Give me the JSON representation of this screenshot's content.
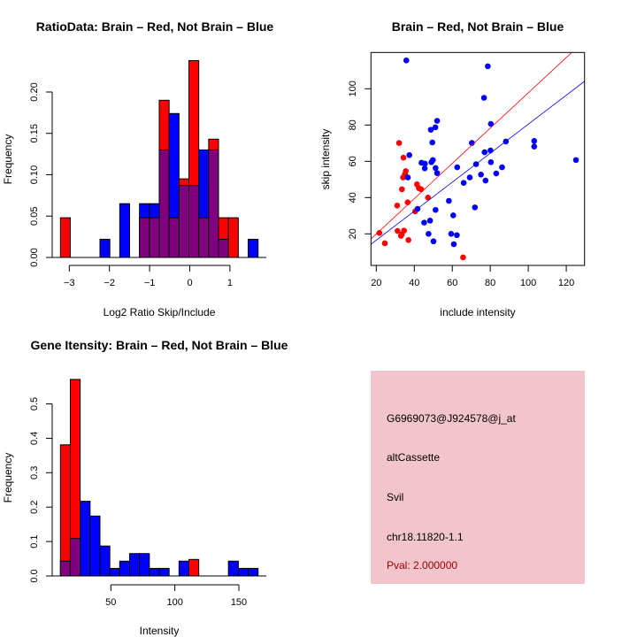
{
  "colors": {
    "red": "#ff0000",
    "blue": "#0000ff",
    "purple": "#800080",
    "panel": "#f2c4cc",
    "pval": "#a00000"
  },
  "chart_data": [
    {
      "type": "bar",
      "title": "RatioData: Brain – Red, Not Brain – Blue",
      "xlabel": "Log2 Ratio Skip/Include",
      "ylabel": "Frequency",
      "bin_start": -3.22,
      "bin_width": 0.246,
      "xticks": [
        -3,
        -2,
        -1,
        0,
        1
      ],
      "yticks": [
        "0.00",
        "0.05",
        "0.10",
        "0.15",
        "0.20"
      ],
      "series": [
        {
          "name": "Brain",
          "color": "red",
          "values": [
            0.048,
            0,
            0,
            0,
            0,
            0,
            0,
            0,
            0.048,
            0.048,
            0.19,
            0.048,
            0.095,
            0.238,
            0.048,
            0.143,
            0.048,
            0.048,
            0,
            0
          ]
        },
        {
          "name": "Not Brain",
          "color": "blue",
          "values": [
            0,
            0,
            0,
            0,
            0.022,
            0,
            0.065,
            0,
            0.065,
            0.065,
            0.13,
            0.174,
            0.087,
            0.087,
            0.13,
            0.13,
            0.022,
            0,
            0,
            0.022
          ]
        }
      ]
    },
    {
      "type": "scatter",
      "title": "Brain – Red, Not Brain – Blue",
      "xlabel": "include intensity",
      "ylabel": "skip intensity",
      "xlim": [
        17.2,
        129.6
      ],
      "ylim": [
        2.6,
        120
      ],
      "xticks": [
        20,
        40,
        60,
        80,
        100,
        120
      ],
      "yticks": [
        20,
        40,
        60,
        80,
        100
      ],
      "lines": [
        {
          "name": "Brain fit",
          "color": "red",
          "intercept": 0.46,
          "slope": 0.973
        },
        {
          "name": "Not Brain fit",
          "color": "blue",
          "intercept": 0.56,
          "slope": 0.799
        }
      ],
      "series": [
        {
          "name": "Brain",
          "color": "red",
          "points": [
            [
              21.6,
              20.5
            ],
            [
              24.5,
              14.8
            ],
            [
              32.0,
              70.1
            ],
            [
              34.3,
              62.0
            ],
            [
              33.5,
              44.6
            ],
            [
              35.5,
              54.6
            ],
            [
              35.1,
              53.0
            ],
            [
              34.1,
              51.1
            ],
            [
              31.0,
              35.6
            ],
            [
              36.5,
              37.4
            ],
            [
              33.4,
              19.7
            ],
            [
              33.0,
              18.9
            ],
            [
              34.6,
              21.8
            ],
            [
              31.2,
              21.6
            ],
            [
              36.9,
              16.6
            ],
            [
              40.5,
              32.4
            ],
            [
              41.4,
              47.3
            ],
            [
              42.4,
              45.2
            ],
            [
              43.6,
              44.6
            ],
            [
              47.2,
              40.0
            ],
            [
              65.7,
              7.0
            ]
          ]
        },
        {
          "name": "Not Brain",
          "color": "blue",
          "points": [
            [
              35.8,
              115.6
            ],
            [
              78.7,
              112.4
            ],
            [
              76.7,
              95.0
            ],
            [
              80.3,
              80.6
            ],
            [
              52.0,
              82.3
            ],
            [
              51.1,
              78.7
            ],
            [
              48.7,
              77.4
            ],
            [
              49.5,
              70.4
            ],
            [
              70.3,
              70.1
            ],
            [
              88.2,
              70.9
            ],
            [
              37.4,
              63.4
            ],
            [
              77.0,
              65.0
            ],
            [
              80.1,
              66.0
            ],
            [
              103.1,
              71.2
            ],
            [
              103.1,
              68.1
            ],
            [
              43.8,
              59.2
            ],
            [
              45.6,
              58.7
            ],
            [
              45.5,
              56.1
            ],
            [
              49.0,
              59.5
            ],
            [
              49.8,
              60.7
            ],
            [
              51.2,
              56.3
            ],
            [
              52.0,
              53.5
            ],
            [
              62.6,
              56.7
            ],
            [
              72.5,
              58.4
            ],
            [
              80.3,
              59.5
            ],
            [
              86.2,
              56.7
            ],
            [
              83.1,
              53.3
            ],
            [
              75.1,
              52.7
            ],
            [
              77.5,
              49.4
            ],
            [
              69.2,
              51.1
            ],
            [
              66.0,
              48.1
            ],
            [
              36.6,
              51.1
            ],
            [
              125.1,
              60.7
            ],
            [
              41.7,
              33.8
            ],
            [
              58.2,
              38.2
            ],
            [
              71.9,
              34.6
            ],
            [
              51.2,
              33.2
            ],
            [
              45.2,
              26.2
            ],
            [
              48.3,
              27.3
            ],
            [
              60.5,
              30.2
            ],
            [
              47.5,
              20.0
            ],
            [
              59.4,
              20.0
            ],
            [
              62.4,
              19.3
            ],
            [
              50.1,
              15.9
            ],
            [
              60.8,
              14.3
            ]
          ]
        }
      ]
    },
    {
      "type": "bar",
      "title": "Gene Itensity: Brain – Red, Not Brain – Blue",
      "xlabel": "Intensity",
      "ylabel": "Frequency",
      "bin_start": 10.6,
      "bin_width": 7.72,
      "xticks": [
        50,
        100,
        150
      ],
      "yticks": [
        "0.0",
        "0.1",
        "0.2",
        "0.3",
        "0.4",
        "0.5"
      ],
      "series": [
        {
          "name": "Brain",
          "color": "red",
          "values": [
            0.381,
            0.571,
            0,
            0,
            0,
            0,
            0,
            0,
            0,
            0,
            0,
            0,
            0,
            0.048,
            0,
            0,
            0,
            0,
            0,
            0
          ]
        },
        {
          "name": "Not Brain",
          "color": "blue",
          "values": [
            0.043,
            0.109,
            0.217,
            0.174,
            0.087,
            0.022,
            0.043,
            0.065,
            0.065,
            0.022,
            0.022,
            0,
            0.043,
            0,
            0,
            0,
            0,
            0.043,
            0.022,
            0.022
          ]
        }
      ]
    }
  ],
  "info_panel": {
    "probe_id": "G6969073@J924578@j_at",
    "event_type": "altCassette",
    "gene": "Svil",
    "location": "chr18.11820-1.1",
    "pval": "Pval: 2.000000"
  }
}
